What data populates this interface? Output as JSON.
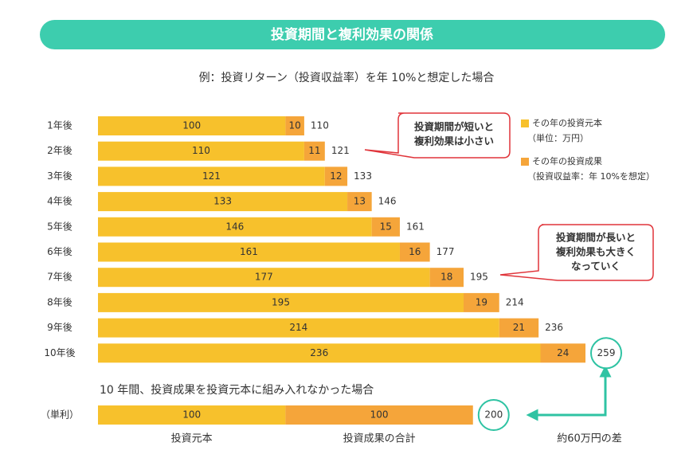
{
  "header": {
    "title": "投資期間と複利効果の関係"
  },
  "chart_data": [
    {
      "type": "bar",
      "orientation": "horizontal",
      "stacked": true,
      "subtitle": "例：投資リターン（投資収益率）を年 10%と想定した場合",
      "categories": [
        "1年後",
        "2年後",
        "3年後",
        "4年後",
        "5年後",
        "6年後",
        "7年後",
        "8年後",
        "9年後",
        "10年後"
      ],
      "series": [
        {
          "name": "その年の投資元本",
          "note": "（単位：万円）",
          "color": "#f7c12c",
          "values": [
            100,
            110,
            121,
            133,
            146,
            161,
            177,
            195,
            214,
            236
          ]
        },
        {
          "name": "その年の投資成果",
          "note": "（投資収益率：年 10%を想定）",
          "color": "#f5a53a",
          "values": [
            10,
            11,
            12,
            13,
            15,
            16,
            18,
            19,
            21,
            24
          ]
        }
      ],
      "totals": [
        110,
        121,
        133,
        146,
        161,
        177,
        195,
        214,
        236,
        259
      ],
      "annotations": [
        [
          "投資期間が短いと",
          "複利効果は小さい"
        ],
        [
          "投資期間が長いと",
          "複利効果も大きく",
          "なっていく"
        ]
      ]
    },
    {
      "type": "bar",
      "orientation": "horizontal",
      "stacked": true,
      "title": "10 年間、投資成果を投資元本に組み入れなかった場合",
      "categories": [
        "（単利）"
      ],
      "series": [
        {
          "name": "投資元本",
          "color": "#f7c12c",
          "values": [
            100
          ]
        },
        {
          "name": "投資成果の合計",
          "color": "#f5a53a",
          "values": [
            100
          ]
        }
      ],
      "totals": [
        200
      ],
      "annotation": "約60万円の差"
    }
  ]
}
